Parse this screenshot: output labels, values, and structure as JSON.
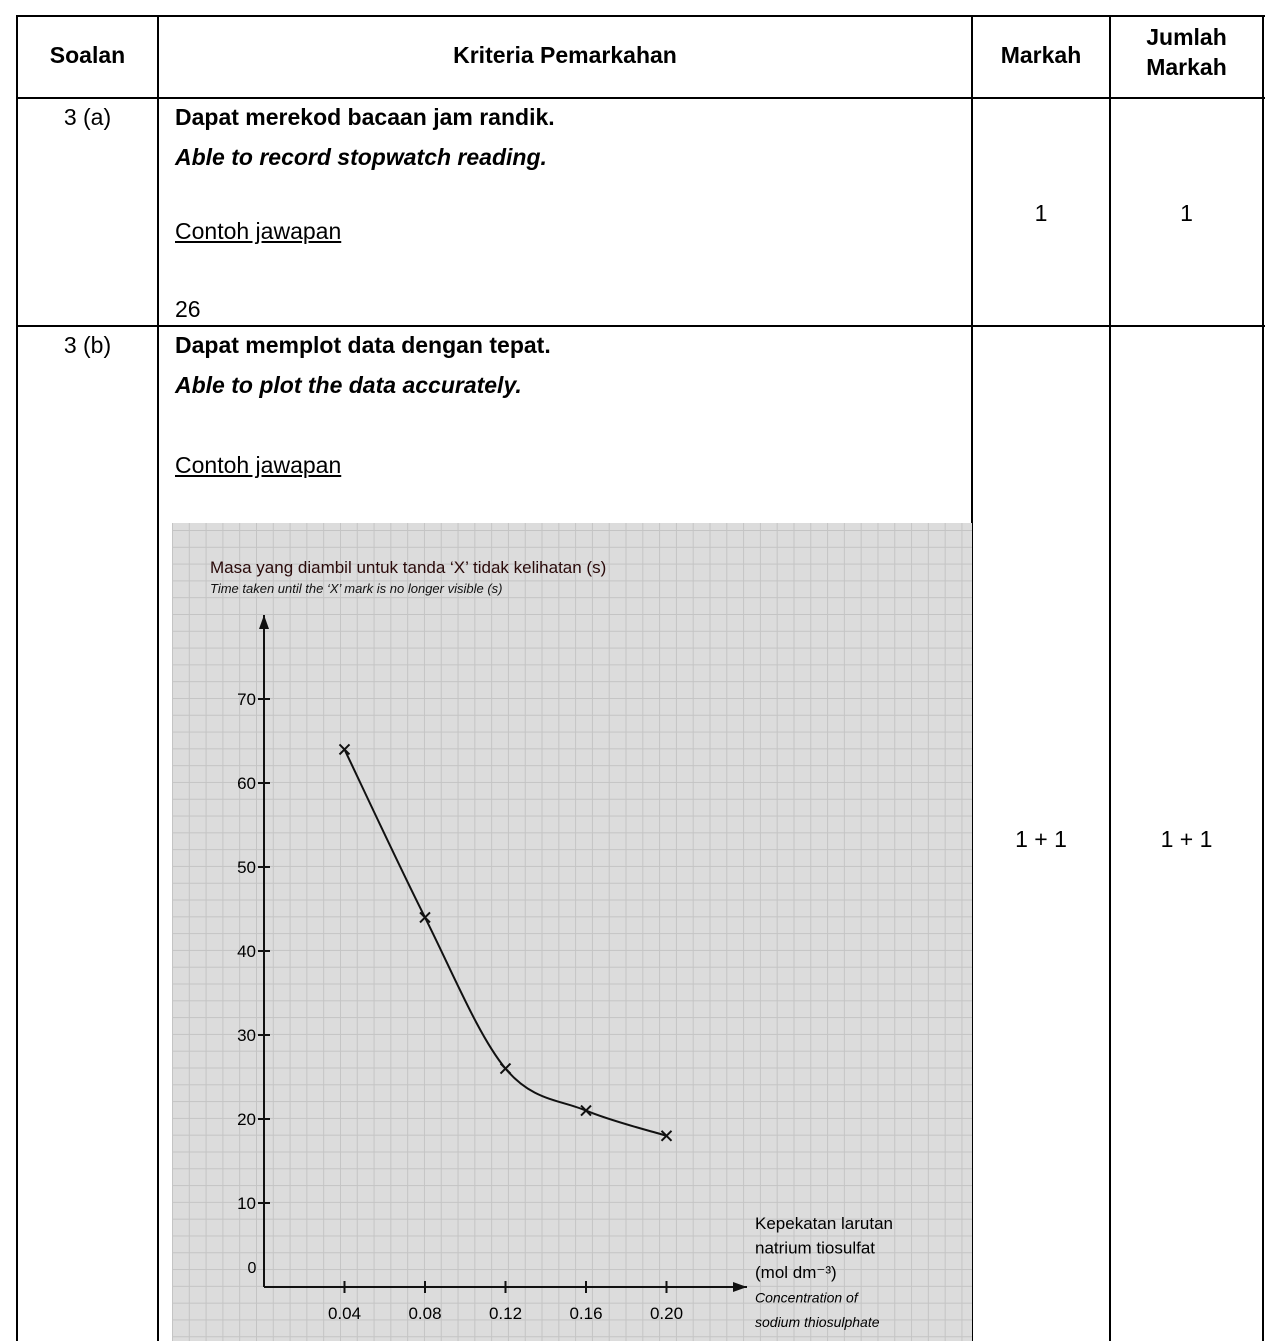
{
  "table": {
    "header": [
      "Soalan",
      "Kriteria Pemarkahan",
      "Markah",
      "Jumlah Markah"
    ],
    "rows": [
      {
        "question": "3 (a)",
        "criteria_ms": "Dapat merekod bacaan jam randik.",
        "criteria_en": "Able to record stopwatch reading.",
        "example_label": "Contoh jawapan",
        "answer": "26",
        "marks": "1",
        "total": "1"
      },
      {
        "question": "3 (b)",
        "criteria_ms": "Dapat memplot data dengan tepat.",
        "criteria_en": "Able to plot the data accurately.",
        "example_label": "Contoh jawapan",
        "marks": "1 + 1",
        "total": "1 + 1"
      }
    ]
  },
  "chart_data": {
    "type": "line",
    "ylabel_ms": "Masa yang diambil untuk tanda ‘X’ tidak kelihatan (s)",
    "ylabel_en": "Time taken until the ‘X’ mark is no longer visible (s)",
    "xlabel_lines": [
      "Kepekatan larutan",
      "natrium tiosulfat",
      "(mol dm⁻³)",
      "Concentration of",
      "sodium thiosulphate"
    ],
    "x": [
      0.04,
      0.08,
      0.12,
      0.16,
      0.2
    ],
    "values": [
      64,
      44,
      26,
      21,
      18
    ],
    "color": "#111111",
    "xlim": [
      0,
      0.24
    ],
    "ylim": [
      0,
      80
    ],
    "xticks": [
      {
        "value": 0.04,
        "label": "0.04"
      },
      {
        "value": 0.08,
        "label": "0.08"
      },
      {
        "value": 0.12,
        "label": "0.12"
      },
      {
        "value": 0.16,
        "label": "0.16"
      },
      {
        "value": 0.2,
        "label": "0.20"
      }
    ],
    "yticks": [
      0,
      10,
      20,
      30,
      40,
      50,
      60,
      70
    ],
    "grid": true
  }
}
